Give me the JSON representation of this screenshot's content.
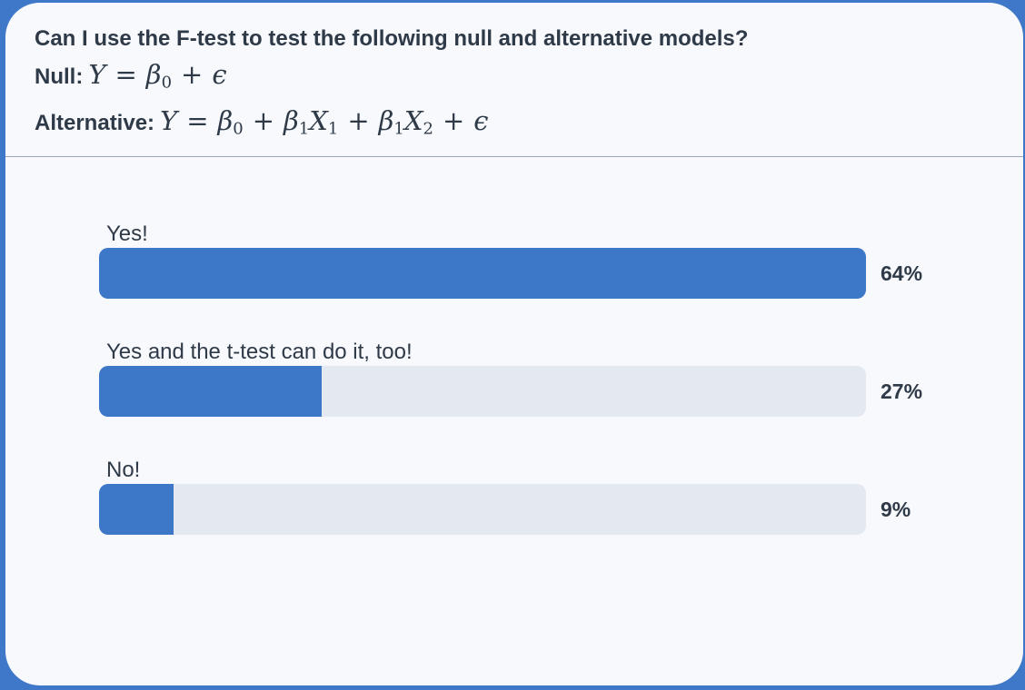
{
  "question": {
    "title": "Can I use the F-test to test the following null and alternative models?",
    "null_label": "Null:",
    "alternative_label": "Alternative:"
  },
  "poll": {
    "options": [
      {
        "label": "Yes!",
        "percent": 64,
        "percent_text": "64%"
      },
      {
        "label": "Yes and the t-test can do it, too!",
        "percent": 27,
        "percent_text": "27%"
      },
      {
        "label": "No!",
        "percent": 9,
        "percent_text": "9%"
      }
    ]
  },
  "colors": {
    "bar_fill": "#3c77c8",
    "bar_track": "#e4e8f0",
    "frame": "#3f78c8"
  }
}
